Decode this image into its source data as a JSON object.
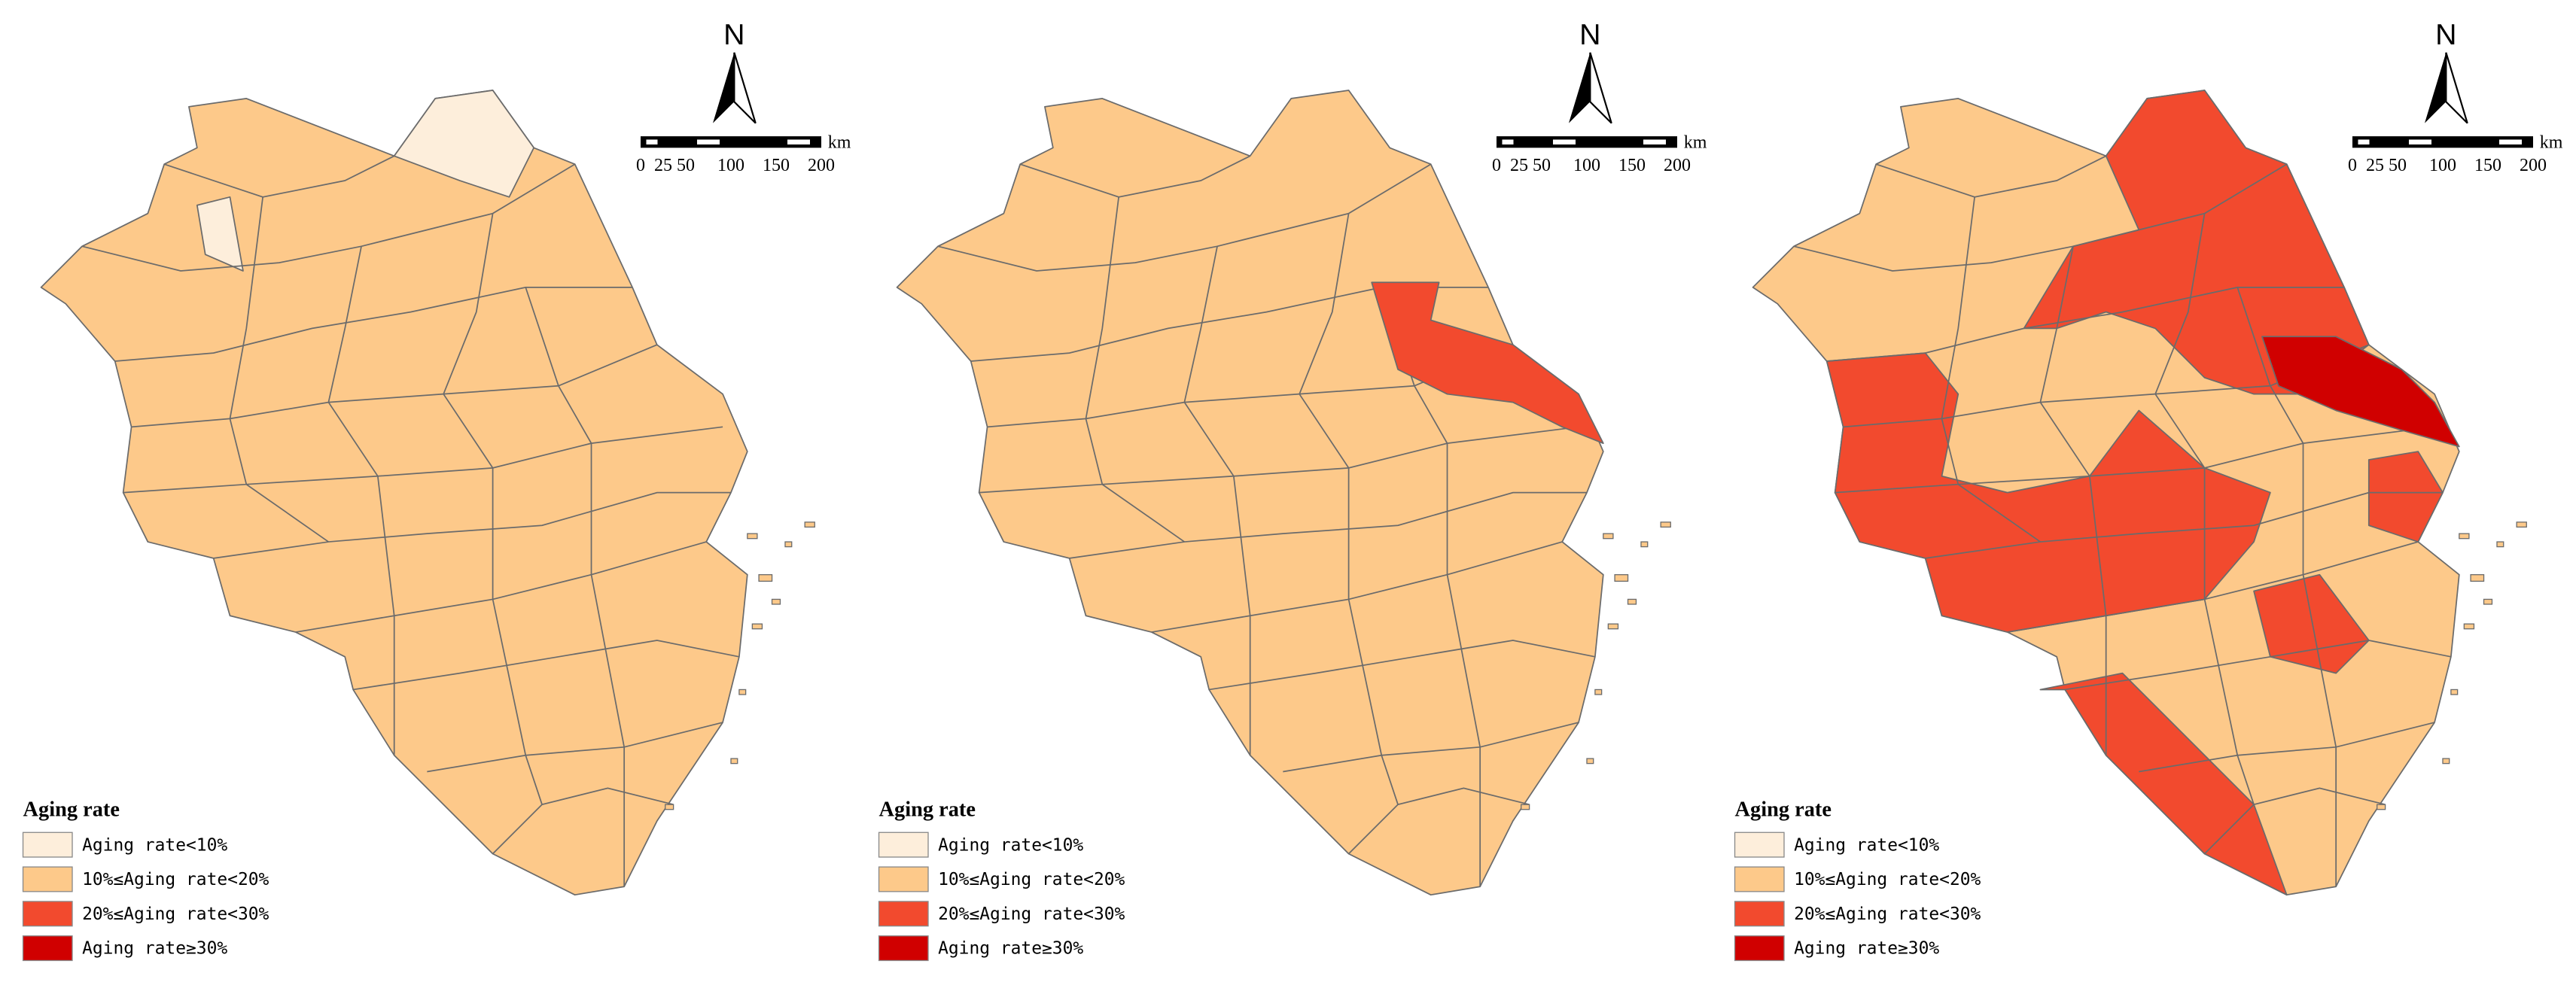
{
  "panels": [
    {
      "north": "N",
      "scale": {
        "unit": "km",
        "ticks": [
          0,
          25,
          50,
          100,
          150,
          200
        ]
      },
      "legend": {
        "title": "Aging rate",
        "items": [
          {
            "label": "Aging rate<10%",
            "color": "#fdeedb"
          },
          {
            "label": "10%≤Aging rate<20%",
            "color": "#fdc98a"
          },
          {
            "label": "20%≤Aging rate<30%",
            "color": "#f24a2e"
          },
          {
            "label": "Aging rate≥30%",
            "color": "#d00000"
          }
        ]
      }
    },
    {
      "north": "N",
      "scale": {
        "unit": "km",
        "ticks": [
          0,
          25,
          50,
          100,
          150,
          200
        ]
      },
      "legend": {
        "title": "Aging rate",
        "items": [
          {
            "label": "Aging rate<10%",
            "color": "#fdeedb"
          },
          {
            "label": "10%≤Aging rate<20%",
            "color": "#fdc98a"
          },
          {
            "label": "20%≤Aging rate<30%",
            "color": "#f24a2e"
          },
          {
            "label": "Aging rate≥30%",
            "color": "#d00000"
          }
        ]
      }
    },
    {
      "north": "N",
      "scale": {
        "unit": "km",
        "ticks": [
          0,
          25,
          50,
          100,
          150,
          200
        ]
      },
      "legend": {
        "title": "Aging rate",
        "items": [
          {
            "label": "Aging rate<10%",
            "color": "#fdeedb"
          },
          {
            "label": "10%≤Aging rate<20%",
            "color": "#fdc98a"
          },
          {
            "label": "20%≤Aging rate<30%",
            "color": "#f24a2e"
          },
          {
            "label": "Aging rate≥30%",
            "color": "#d00000"
          }
        ]
      }
    }
  ]
}
